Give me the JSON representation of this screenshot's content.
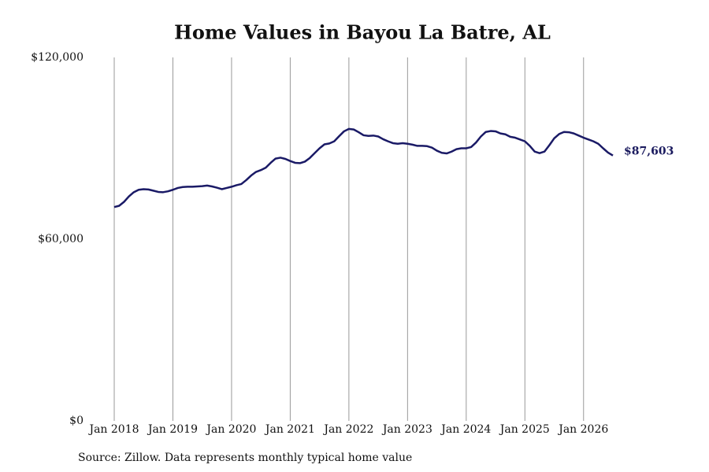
{
  "chart_data": {
    "type": "line",
    "title": "Home Values in Bayou La Batre, AL",
    "source": "Source: Zillow. Data represents monthly typical home value",
    "x": [
      "2018-01",
      "2018-02",
      "2018-03",
      "2018-04",
      "2018-05",
      "2018-06",
      "2018-07",
      "2018-08",
      "2018-09",
      "2018-10",
      "2018-11",
      "2018-12",
      "2019-01",
      "2019-02",
      "2019-03",
      "2019-04",
      "2019-05",
      "2019-06",
      "2019-07",
      "2019-08",
      "2019-09",
      "2019-10",
      "2019-11",
      "2019-12",
      "2020-01",
      "2020-02",
      "2020-03",
      "2020-04",
      "2020-05",
      "2020-06",
      "2020-07",
      "2020-08",
      "2020-09",
      "2020-10",
      "2020-11",
      "2020-12",
      "2021-01",
      "2021-02",
      "2021-03",
      "2021-04",
      "2021-05",
      "2021-06",
      "2021-07",
      "2021-08",
      "2021-09",
      "2021-10",
      "2021-11",
      "2021-12",
      "2022-01",
      "2022-02",
      "2022-03",
      "2022-04",
      "2022-05",
      "2022-06",
      "2022-07",
      "2022-08",
      "2022-09",
      "2022-10",
      "2022-11",
      "2022-12",
      "2023-01",
      "2023-02",
      "2023-03",
      "2023-04",
      "2023-05",
      "2023-06",
      "2023-07",
      "2023-08",
      "2023-09",
      "2023-10",
      "2023-11",
      "2023-12",
      "2024-01",
      "2024-02",
      "2024-03",
      "2024-04",
      "2024-05",
      "2024-06",
      "2024-07",
      "2024-08",
      "2024-09",
      "2024-10",
      "2024-11",
      "2024-12",
      "2025-01",
      "2025-02",
      "2025-03",
      "2025-04",
      "2025-05",
      "2025-06",
      "2025-07",
      "2025-08",
      "2025-09",
      "2025-10",
      "2025-11",
      "2025-12",
      "2026-01",
      "2026-02",
      "2026-03",
      "2026-04",
      "2026-05",
      "2026-06",
      "2026-07"
    ],
    "series": [
      {
        "name": "Home value",
        "color": "#1a1a66",
        "values": [
          70600,
          71000,
          72300,
          74100,
          75500,
          76300,
          76500,
          76400,
          76000,
          75600,
          75500,
          75800,
          76300,
          76900,
          77200,
          77300,
          77300,
          77400,
          77500,
          77700,
          77400,
          77000,
          76500,
          76900,
          77300,
          77800,
          78200,
          79500,
          81000,
          82200,
          82800,
          83600,
          85200,
          86600,
          86900,
          86500,
          85800,
          85200,
          85100,
          85600,
          86800,
          88400,
          90000,
          91300,
          91600,
          92300,
          94000,
          95600,
          96400,
          96200,
          95300,
          94300,
          94100,
          94200,
          93900,
          93000,
          92300,
          91700,
          91500,
          91700,
          91500,
          91200,
          90800,
          90800,
          90700,
          90200,
          89200,
          88500,
          88300,
          88900,
          89700,
          90000,
          90000,
          90400,
          91900,
          93900,
          95400,
          95700,
          95600,
          94900,
          94600,
          93800,
          93500,
          92900,
          92300,
          90800,
          88900,
          88400,
          88900,
          91000,
          93300,
          94700,
          95400,
          95300,
          94900,
          94200,
          93500,
          92900,
          92300,
          91500,
          90000,
          88600,
          87603
        ],
        "value_labels": [
          null,
          null,
          null,
          null,
          null,
          null,
          null,
          null,
          null,
          null,
          null,
          null,
          null,
          null,
          null,
          null,
          null,
          null,
          null,
          null,
          null,
          null,
          null,
          null,
          null,
          null,
          null,
          null,
          null,
          null,
          null,
          null,
          null,
          null,
          null,
          null,
          null,
          null,
          null,
          null,
          null,
          null,
          null,
          null,
          null,
          null,
          null,
          null,
          null,
          null,
          null,
          null,
          null,
          null,
          null,
          null,
          null,
          null,
          null,
          null,
          null,
          null,
          null,
          null,
          null,
          null,
          null,
          null,
          null,
          null,
          null,
          null,
          null,
          null,
          null,
          null,
          null,
          null,
          null,
          null,
          null,
          null,
          null,
          null,
          null,
          null,
          null,
          null,
          null,
          null,
          null,
          null,
          null,
          null,
          null,
          null,
          null,
          null,
          null,
          null,
          null,
          null,
          "$87,603"
        ]
      }
    ],
    "xlim": [
      "2018-01",
      "2026-07"
    ],
    "xticks": [
      {
        "value": "2018-01",
        "label": "Jan 2018"
      },
      {
        "value": "2019-01",
        "label": "Jan 2019"
      },
      {
        "value": "2020-01",
        "label": "Jan 2020"
      },
      {
        "value": "2021-01",
        "label": "Jan 2021"
      },
      {
        "value": "2022-01",
        "label": "Jan 2022"
      },
      {
        "value": "2023-01",
        "label": "Jan 2023"
      },
      {
        "value": "2024-01",
        "label": "Jan 2024"
      },
      {
        "value": "2025-01",
        "label": "Jan 2025"
      },
      {
        "value": "2026-01",
        "label": "Jan 2026"
      }
    ],
    "ylim": [
      0,
      120000
    ],
    "yticks": [
      {
        "value": 0,
        "label": "$0"
      },
      {
        "value": 60000,
        "label": "$60,000"
      },
      {
        "value": 120000,
        "label": "$120,000"
      }
    ],
    "grid": "x"
  }
}
